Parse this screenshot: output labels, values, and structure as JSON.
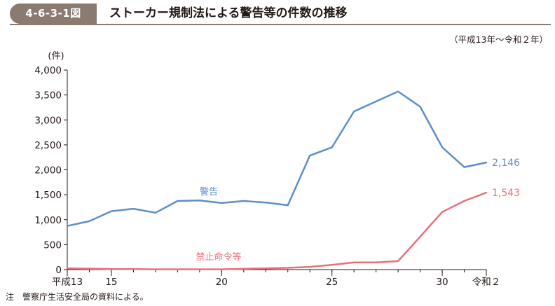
{
  "header": {
    "figure_number": "4-6-3-1図",
    "title": "ストーカー規制法による警告等の件数の推移"
  },
  "period_note": "（平成13年～令和２年）",
  "footnote": "注　警察庁生活安全局の資料による。",
  "colors": {
    "header_bg": "#8a7a70",
    "warning_series": "#5b8fc9",
    "prohibition_series": "#e8707b"
  },
  "chart_data": {
    "type": "line",
    "title": "ストーカー規制法による警告等の件数の推移",
    "ylabel": "(件)",
    "xlabel": "",
    "ylim": [
      0,
      4000
    ],
    "yticks": [
      0,
      500,
      1000,
      1500,
      2000,
      2500,
      3000,
      3500,
      4000
    ],
    "ytick_labels": [
      "0",
      "500",
      "1,000",
      "1,500",
      "2,000",
      "2,500",
      "3,000",
      "3,500",
      "4,000"
    ],
    "x": [
      13,
      14,
      15,
      16,
      17,
      18,
      19,
      20,
      21,
      22,
      23,
      24,
      25,
      26,
      27,
      28,
      29,
      30,
      31,
      32
    ],
    "xtick_values": [
      13,
      15,
      20,
      25,
      30,
      32
    ],
    "xtick_labels": [
      "平成13",
      "15",
      "20",
      "25",
      "30",
      "令和２"
    ],
    "grid": false,
    "series": [
      {
        "name": "警告",
        "color": "#5b8fc9",
        "values": [
          875,
          970,
          1170,
          1220,
          1140,
          1375,
          1385,
          1335,
          1375,
          1345,
          1290,
          2285,
          2450,
          3170,
          3370,
          3570,
          3265,
          2450,
          2055,
          2146
        ],
        "end_label": "2,146"
      },
      {
        "name": "禁止命令等",
        "color": "#e8707b",
        "values": [
          25,
          20,
          10,
          10,
          5,
          5,
          5,
          5,
          15,
          25,
          35,
          55,
          95,
          145,
          145,
          170,
          660,
          1155,
          1375,
          1543
        ],
        "end_label": "1,543"
      }
    ]
  }
}
